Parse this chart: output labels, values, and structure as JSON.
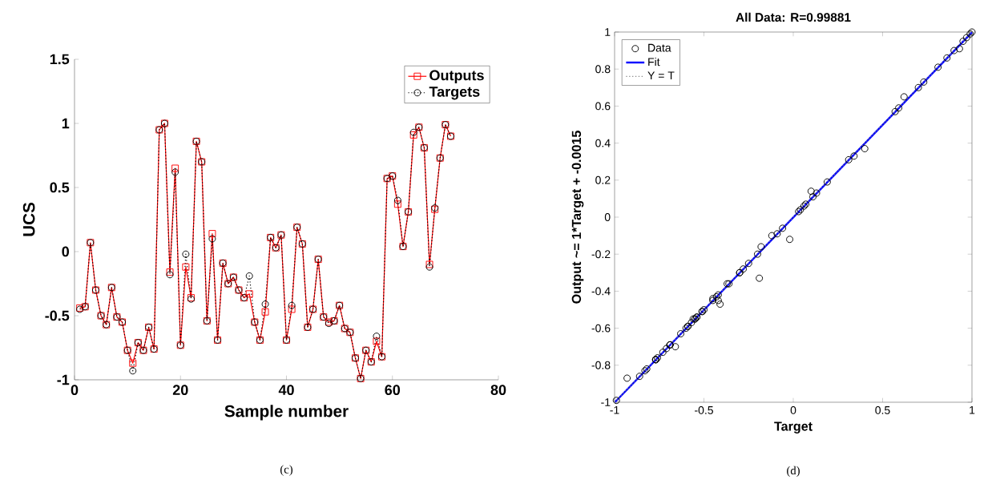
{
  "chart_data": [
    {
      "type": "line",
      "xlabel": "Sample number",
      "ylabel": "UCS",
      "xlim": [
        0,
        80
      ],
      "xticks": [
        0,
        20,
        40,
        60,
        80
      ],
      "ylim": [
        -1,
        1.5
      ],
      "yticks": [
        -1,
        -0.5,
        0,
        0.5,
        1,
        1.5
      ],
      "legend": "top right",
      "annotations": [
        "(c)"
      ],
      "x": [
        1,
        2,
        3,
        4,
        5,
        6,
        7,
        8,
        9,
        10,
        11,
        12,
        13,
        14,
        15,
        16,
        17,
        18,
        19,
        20,
        21,
        22,
        23,
        24,
        25,
        26,
        27,
        28,
        29,
        30,
        31,
        32,
        33,
        34,
        35,
        36,
        37,
        38,
        39,
        40,
        41,
        42,
        43,
        44,
        45,
        46,
        47,
        48,
        49,
        50,
        51,
        52,
        53,
        54,
        55,
        56,
        57,
        58,
        59,
        60,
        61,
        62,
        63,
        64,
        65,
        66,
        67,
        68,
        69,
        70,
        71
      ],
      "series": [
        {
          "name": "Outputs",
          "color": "#ff0000",
          "marker": "square",
          "line_style": "solid",
          "values": [
            -0.44,
            -0.43,
            0.07,
            -0.3,
            -0.5,
            -0.57,
            -0.28,
            -0.51,
            -0.55,
            -0.77,
            -0.87,
            -0.71,
            -0.77,
            -0.59,
            -0.76,
            0.95,
            1.0,
            -0.16,
            0.65,
            -0.73,
            -0.12,
            -0.36,
            0.86,
            0.7,
            -0.54,
            0.14,
            -0.69,
            -0.09,
            -0.25,
            -0.2,
            -0.3,
            -0.36,
            -0.33,
            -0.55,
            -0.69,
            -0.47,
            0.11,
            0.03,
            0.13,
            -0.69,
            -0.45,
            0.19,
            0.06,
            -0.59,
            -0.45,
            -0.06,
            -0.51,
            -0.55,
            -0.54,
            -0.42,
            -0.6,
            -0.63,
            -0.83,
            -0.99,
            -0.77,
            -0.86,
            -0.7,
            -0.82,
            0.57,
            0.59,
            0.37,
            0.04,
            0.31,
            0.91,
            0.97,
            0.81,
            -0.1,
            0.33,
            0.73,
            0.99,
            0.9
          ]
        },
        {
          "name": "Targets",
          "color": "#000000",
          "marker": "circle",
          "line_style": "dotted",
          "values": [
            -0.45,
            -0.43,
            0.07,
            -0.3,
            -0.5,
            -0.57,
            -0.28,
            -0.51,
            -0.55,
            -0.77,
            -0.93,
            -0.71,
            -0.77,
            -0.59,
            -0.76,
            0.95,
            1.0,
            -0.18,
            0.62,
            -0.73,
            -0.02,
            -0.37,
            0.86,
            0.7,
            -0.54,
            0.1,
            -0.69,
            -0.09,
            -0.25,
            -0.2,
            -0.3,
            -0.36,
            -0.19,
            -0.55,
            -0.69,
            -0.41,
            0.11,
            0.03,
            0.13,
            -0.69,
            -0.42,
            0.19,
            0.06,
            -0.59,
            -0.45,
            -0.06,
            -0.51,
            -0.56,
            -0.54,
            -0.42,
            -0.6,
            -0.63,
            -0.83,
            -0.99,
            -0.77,
            -0.86,
            -0.66,
            -0.82,
            0.57,
            0.59,
            0.4,
            0.04,
            0.31,
            0.93,
            0.97,
            0.81,
            -0.12,
            0.34,
            0.73,
            0.99,
            0.9
          ]
        }
      ]
    },
    {
      "type": "scatter",
      "title": "All Data: R=0.99881",
      "xlabel": "Target",
      "ylabel": "Output ~= 1*Target + -0.0015",
      "xlim": [
        -1,
        1
      ],
      "xticks": [
        -1,
        -0.5,
        0,
        0.5,
        1
      ],
      "ylim": [
        -1,
        1
      ],
      "yticks": [
        -1,
        -0.8,
        -0.6,
        -0.4,
        -0.2,
        0,
        0.2,
        0.4,
        0.6,
        0.8,
        1
      ],
      "legend": "top left",
      "annotations": [
        "(d)"
      ],
      "series": [
        {
          "name": "Data",
          "color": "#000000",
          "marker": "circle",
          "x": [
            -0.45,
            -0.43,
            0.07,
            -0.3,
            -0.5,
            -0.57,
            -0.28,
            -0.51,
            -0.55,
            -0.77,
            -0.93,
            -0.71,
            -0.77,
            -0.59,
            -0.76,
            0.95,
            1.0,
            -0.18,
            0.62,
            -0.73,
            -0.02,
            -0.37,
            0.86,
            0.7,
            -0.54,
            0.1,
            -0.69,
            -0.09,
            -0.25,
            -0.2,
            -0.3,
            -0.36,
            -0.19,
            -0.55,
            -0.69,
            -0.41,
            0.11,
            0.03,
            0.13,
            -0.69,
            -0.42,
            0.19,
            0.06,
            -0.59,
            -0.45,
            -0.06,
            -0.51,
            -0.56,
            -0.54,
            -0.42,
            -0.6,
            -0.63,
            -0.83,
            -0.99,
            -0.77,
            -0.86,
            -0.66,
            -0.82,
            0.57,
            0.59,
            0.4,
            0.04,
            0.31,
            0.93,
            0.97,
            0.81,
            -0.12,
            0.34,
            0.73,
            0.99,
            0.9
          ],
          "values": [
            -0.44,
            -0.43,
            0.07,
            -0.3,
            -0.5,
            -0.57,
            -0.28,
            -0.51,
            -0.55,
            -0.77,
            -0.87,
            -0.71,
            -0.77,
            -0.59,
            -0.76,
            0.95,
            1.0,
            -0.16,
            0.65,
            -0.73,
            -0.12,
            -0.36,
            0.86,
            0.7,
            -0.54,
            0.14,
            -0.69,
            -0.09,
            -0.25,
            -0.2,
            -0.3,
            -0.36,
            -0.33,
            -0.55,
            -0.69,
            -0.47,
            0.11,
            0.03,
            0.13,
            -0.69,
            -0.45,
            0.19,
            0.06,
            -0.59,
            -0.45,
            -0.06,
            -0.51,
            -0.55,
            -0.54,
            -0.42,
            -0.6,
            -0.63,
            -0.83,
            -0.99,
            -0.77,
            -0.86,
            -0.7,
            -0.82,
            0.57,
            0.59,
            0.37,
            0.04,
            0.31,
            0.91,
            0.97,
            0.81,
            -0.1,
            0.33,
            0.73,
            0.99,
            0.9
          ]
        },
        {
          "name": "Fit",
          "type": "line",
          "color": "#0000ff",
          "line_style": "solid",
          "x": [
            -0.9985,
            1
          ],
          "values": [
            -1,
            0.9985
          ]
        },
        {
          "name": "Y = T",
          "type": "line",
          "color": "#808080",
          "line_style": "dotted",
          "x": [
            -1,
            1
          ],
          "values": [
            -1,
            1
          ]
        }
      ]
    }
  ]
}
